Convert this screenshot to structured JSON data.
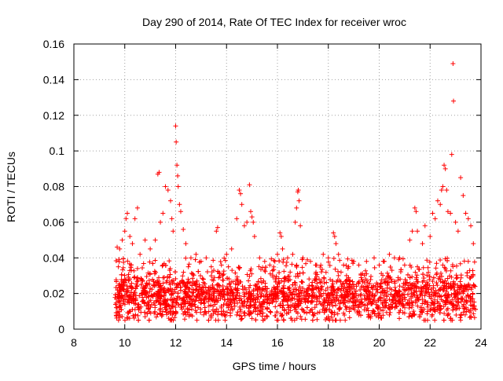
{
  "chart_data": {
    "type": "scatter",
    "title": "Day 290 of 2014, Rate Of TEC Index for receiver wroc",
    "xlabel": "GPS time / hours",
    "ylabel": "ROTI / TECUs",
    "xlim": [
      8,
      24
    ],
    "ylim": [
      0,
      0.16
    ],
    "x_ticks": [
      8,
      10,
      12,
      14,
      16,
      18,
      20,
      22,
      24
    ],
    "x_tick_labels": [
      "8",
      "10",
      "12",
      "14",
      "16",
      "18",
      "20",
      "22",
      "24"
    ],
    "y_ticks": [
      0,
      0.02,
      0.04,
      0.06,
      0.08,
      0.1,
      0.12,
      0.14,
      0.16
    ],
    "y_tick_labels": [
      "0",
      "0.02",
      "0.04",
      "0.06",
      "0.08",
      "0.1",
      "0.12",
      "0.14",
      "0.16"
    ],
    "grid": true,
    "marker": "+",
    "marker_color": "#ff0000",
    "series": [
      {
        "name": "ROTI",
        "points": [
          [
            9.7,
            0.046
          ],
          [
            9.8,
            0.045
          ],
          [
            9.9,
            0.05
          ],
          [
            10.0,
            0.055
          ],
          [
            10.05,
            0.062
          ],
          [
            10.1,
            0.065
          ],
          [
            10.2,
            0.052
          ],
          [
            10.3,
            0.048
          ],
          [
            10.4,
            0.062
          ],
          [
            10.5,
            0.068
          ],
          [
            10.6,
            0.042
          ],
          [
            10.8,
            0.05
          ],
          [
            11.0,
            0.045
          ],
          [
            11.2,
            0.05
          ],
          [
            11.3,
            0.087
          ],
          [
            11.35,
            0.088
          ],
          [
            11.4,
            0.06
          ],
          [
            11.5,
            0.065
          ],
          [
            11.6,
            0.08
          ],
          [
            11.7,
            0.078
          ],
          [
            11.8,
            0.072
          ],
          [
            11.85,
            0.062
          ],
          [
            11.9,
            0.055
          ],
          [
            12.0,
            0.114
          ],
          [
            12.02,
            0.105
          ],
          [
            12.05,
            0.092
          ],
          [
            12.08,
            0.086
          ],
          [
            12.1,
            0.08
          ],
          [
            12.15,
            0.07
          ],
          [
            12.2,
            0.066
          ],
          [
            12.3,
            0.056
          ],
          [
            12.4,
            0.048
          ],
          [
            12.6,
            0.04
          ],
          [
            12.8,
            0.042
          ],
          [
            13.0,
            0.038
          ],
          [
            13.2,
            0.04
          ],
          [
            13.4,
            0.035
          ],
          [
            13.6,
            0.055
          ],
          [
            13.65,
            0.057
          ],
          [
            13.8,
            0.036
          ],
          [
            14.0,
            0.042
          ],
          [
            14.2,
            0.045
          ],
          [
            14.4,
            0.062
          ],
          [
            14.5,
            0.078
          ],
          [
            14.55,
            0.076
          ],
          [
            14.6,
            0.07
          ],
          [
            14.7,
            0.058
          ],
          [
            14.8,
            0.06
          ],
          [
            14.9,
            0.081
          ],
          [
            14.95,
            0.066
          ],
          [
            15.0,
            0.063
          ],
          [
            15.05,
            0.06
          ],
          [
            15.1,
            0.052
          ],
          [
            15.3,
            0.04
          ],
          [
            15.5,
            0.038
          ],
          [
            15.7,
            0.036
          ],
          [
            15.9,
            0.038
          ],
          [
            16.0,
            0.042
          ],
          [
            16.1,
            0.054
          ],
          [
            16.15,
            0.052
          ],
          [
            16.2,
            0.045
          ],
          [
            16.4,
            0.04
          ],
          [
            16.6,
            0.042
          ],
          [
            16.7,
            0.06
          ],
          [
            16.75,
            0.068
          ],
          [
            16.8,
            0.077
          ],
          [
            16.82,
            0.078
          ],
          [
            16.85,
            0.072
          ],
          [
            16.9,
            0.058
          ],
          [
            17.0,
            0.04
          ],
          [
            17.3,
            0.038
          ],
          [
            17.5,
            0.036
          ],
          [
            17.8,
            0.042
          ],
          [
            18.0,
            0.04
          ],
          [
            18.2,
            0.054
          ],
          [
            18.25,
            0.052
          ],
          [
            18.3,
            0.048
          ],
          [
            18.4,
            0.042
          ],
          [
            18.6,
            0.036
          ],
          [
            18.8,
            0.035
          ],
          [
            19.0,
            0.038
          ],
          [
            19.2,
            0.036
          ],
          [
            19.5,
            0.038
          ],
          [
            19.8,
            0.04
          ],
          [
            20.0,
            0.036
          ],
          [
            20.2,
            0.038
          ],
          [
            20.4,
            0.042
          ],
          [
            20.6,
            0.04
          ],
          [
            20.8,
            0.04
          ],
          [
            21.0,
            0.036
          ],
          [
            21.2,
            0.05
          ],
          [
            21.3,
            0.055
          ],
          [
            21.4,
            0.068
          ],
          [
            21.45,
            0.066
          ],
          [
            21.5,
            0.055
          ],
          [
            21.7,
            0.048
          ],
          [
            21.8,
            0.058
          ],
          [
            22.0,
            0.052
          ],
          [
            22.1,
            0.065
          ],
          [
            22.2,
            0.062
          ],
          [
            22.3,
            0.072
          ],
          [
            22.4,
            0.07
          ],
          [
            22.45,
            0.078
          ],
          [
            22.5,
            0.08
          ],
          [
            22.55,
            0.092
          ],
          [
            22.6,
            0.09
          ],
          [
            22.65,
            0.078
          ],
          [
            22.7,
            0.066
          ],
          [
            22.8,
            0.065
          ],
          [
            22.85,
            0.098
          ],
          [
            22.9,
            0.149
          ],
          [
            22.92,
            0.128
          ],
          [
            23.0,
            0.06
          ],
          [
            23.1,
            0.055
          ],
          [
            23.2,
            0.085
          ],
          [
            23.3,
            0.075
          ],
          [
            23.4,
            0.065
          ],
          [
            23.5,
            0.062
          ],
          [
            23.6,
            0.058
          ],
          [
            23.7,
            0.048
          ],
          [
            9.75,
            0.035
          ],
          [
            10.5,
            0.034
          ],
          [
            11.5,
            0.036
          ],
          [
            12.5,
            0.035
          ],
          [
            13.5,
            0.033
          ],
          [
            14.5,
            0.034
          ],
          [
            15.5,
            0.033
          ],
          [
            16.5,
            0.032
          ],
          [
            17.5,
            0.031
          ],
          [
            18.5,
            0.032
          ],
          [
            19.5,
            0.031
          ],
          [
            20.5,
            0.033
          ],
          [
            21.5,
            0.035
          ],
          [
            22.5,
            0.036
          ],
          [
            23.5,
            0.038
          ],
          [
            9.7,
            0.012
          ],
          [
            9.8,
            0.008
          ],
          [
            10.2,
            0.01
          ],
          [
            10.8,
            0.007
          ],
          [
            11.4,
            0.009
          ],
          [
            12.0,
            0.01
          ],
          [
            12.6,
            0.008
          ],
          [
            13.2,
            0.009
          ],
          [
            13.8,
            0.01
          ],
          [
            14.4,
            0.008
          ],
          [
            15.0,
            0.006
          ],
          [
            15.6,
            0.007
          ],
          [
            16.2,
            0.008
          ],
          [
            16.8,
            0.009
          ],
          [
            17.4,
            0.008
          ],
          [
            18.0,
            0.007
          ],
          [
            18.6,
            0.009
          ],
          [
            19.2,
            0.008
          ],
          [
            19.8,
            0.01
          ],
          [
            20.4,
            0.008
          ],
          [
            21.0,
            0.009
          ],
          [
            21.6,
            0.008
          ],
          [
            22.2,
            0.01
          ],
          [
            22.8,
            0.006
          ],
          [
            23.2,
            0.005
          ],
          [
            23.6,
            0.007
          ]
        ]
      }
    ],
    "band": {
      "description": "dense cloud of ROTI samples from ~9.6 h to ~23.8 h",
      "x_range": [
        9.6,
        23.8
      ],
      "typical_min": 0.005,
      "typical_center": 0.018,
      "typical_max": 0.032
    }
  }
}
